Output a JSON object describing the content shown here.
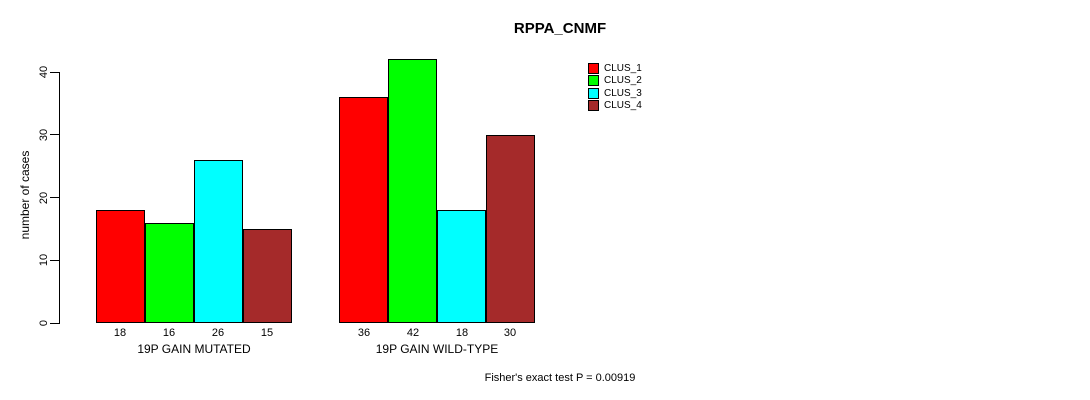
{
  "chart_data": {
    "type": "bar",
    "title": "RPPA_CNMF",
    "ylabel": "number of cases",
    "ylim": [
      0,
      40
    ],
    "yticks": [
      0,
      10,
      20,
      30,
      40
    ],
    "grid": false,
    "legend_position": "top-right",
    "categories": [
      "19P GAIN MUTATED",
      "19P GAIN WILD-TYPE"
    ],
    "series": [
      {
        "name": "CLUS_1",
        "color": "#FF0000",
        "values": [
          18,
          36
        ]
      },
      {
        "name": "CLUS_2",
        "color": "#00FF00",
        "values": [
          16,
          42
        ]
      },
      {
        "name": "CLUS_3",
        "color": "#00FFFF",
        "values": [
          26,
          18
        ]
      },
      {
        "name": "CLUS_4",
        "color": "#A52A2A",
        "values": [
          15,
          30
        ]
      }
    ],
    "bar_value_labels": [
      [
        18,
        16,
        26,
        15
      ],
      [
        36,
        42,
        18,
        30
      ]
    ],
    "footnote": "Fisher's exact test P = 0.00919"
  }
}
